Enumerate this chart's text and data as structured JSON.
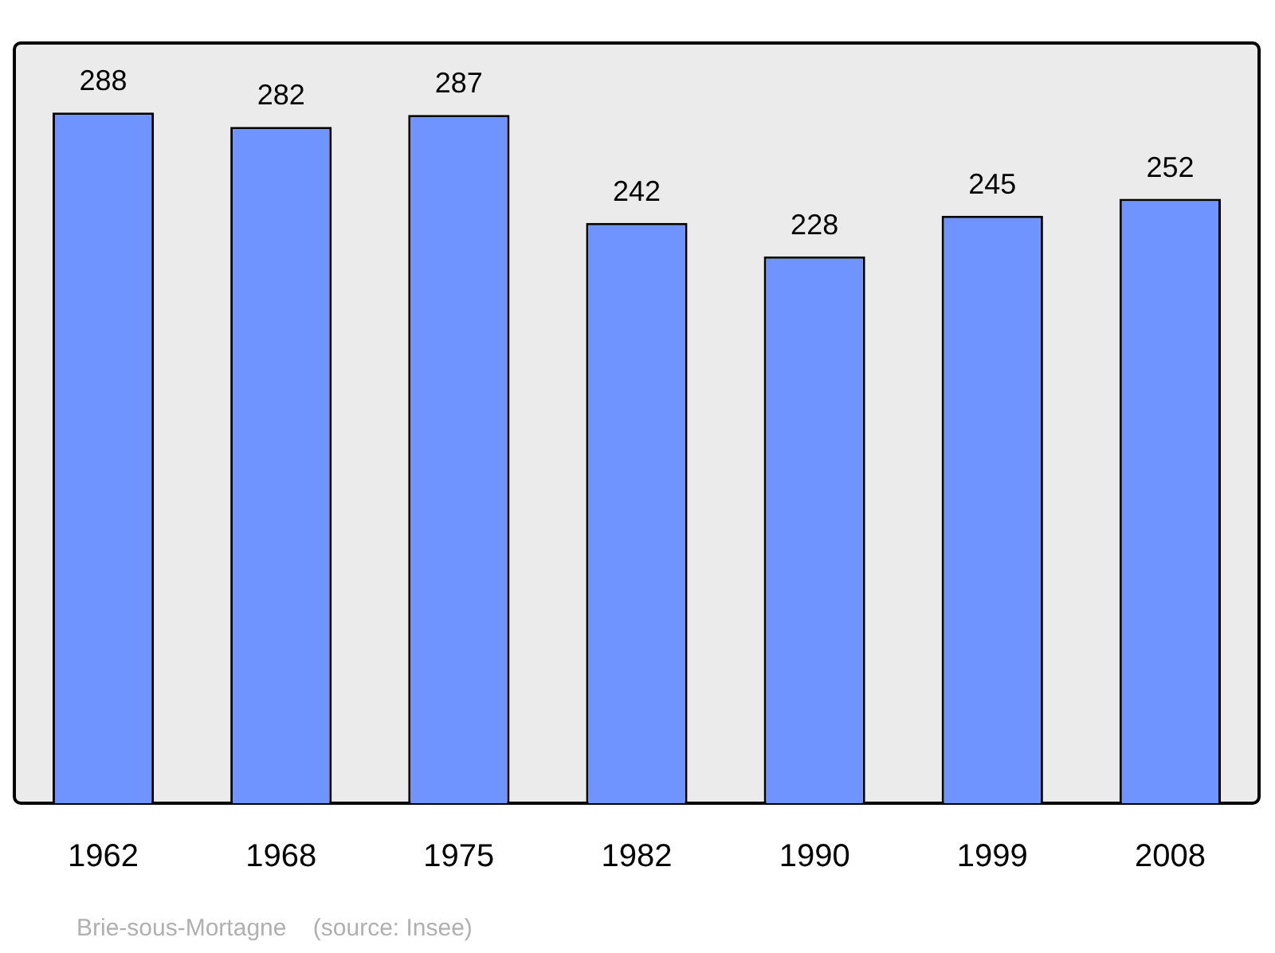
{
  "chart_data": {
    "type": "bar",
    "categories": [
      "1962",
      "1968",
      "1975",
      "1982",
      "1990",
      "1999",
      "2008"
    ],
    "values": [
      288,
      282,
      287,
      242,
      228,
      245,
      252
    ],
    "color": "#7094ff",
    "ylim": [
      0,
      317
    ],
    "data_labels": true,
    "annotations": [
      "Brie-sous-Mortagne    (source: Insee)"
    ]
  }
}
